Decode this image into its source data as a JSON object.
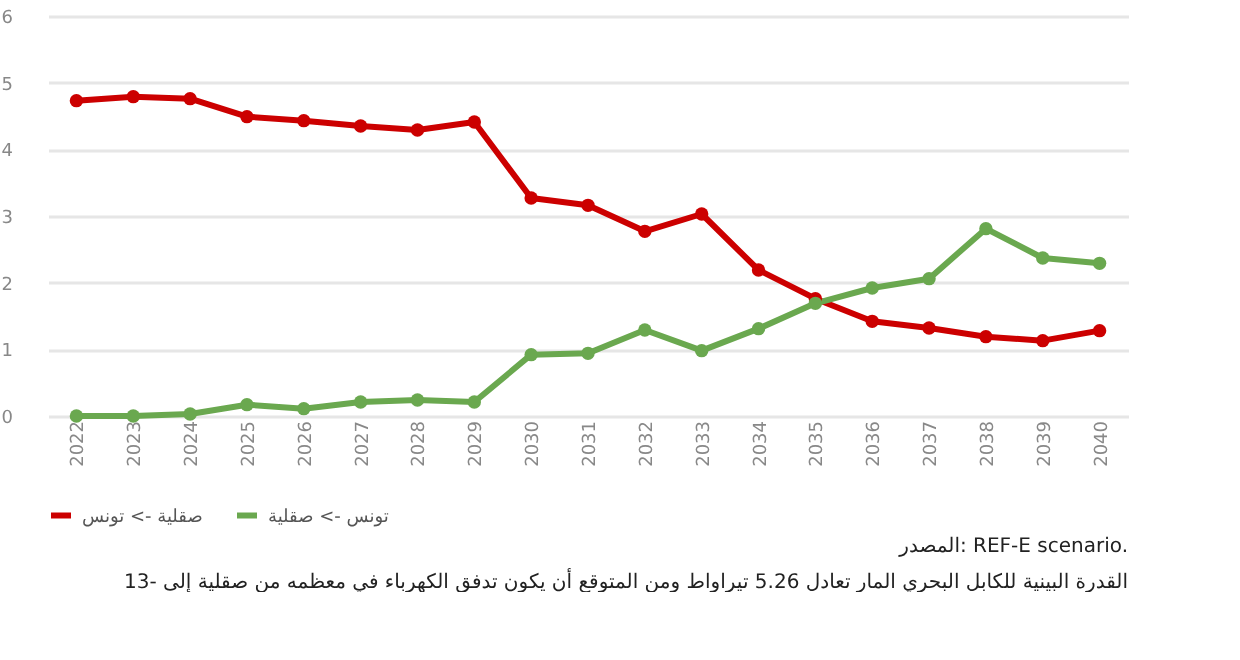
{
  "chart_data": {
    "type": "line",
    "categories": [
      "2022",
      "2023",
      "2024",
      "2025",
      "2026",
      "2027",
      "2028",
      "2029",
      "2030",
      "2031",
      "2032",
      "2033",
      "2034",
      "2035",
      "2036",
      "2037",
      "2038",
      "2039",
      "2040"
    ],
    "series": [
      {
        "name": "صقلية -> تونس",
        "color": "#cc0000",
        "values": [
          4.73,
          4.79,
          4.76,
          4.49,
          4.43,
          4.35,
          4.29,
          4.41,
          3.27,
          3.16,
          2.77,
          3.03,
          2.19,
          1.76,
          1.42,
          1.32,
          1.19,
          1.13,
          1.28
        ]
      },
      {
        "name": "تونس -> صقلية",
        "color": "#6aa84f",
        "values": [
          0,
          0,
          0.03,
          0.17,
          0.11,
          0.21,
          0.24,
          0.21,
          0.92,
          0.94,
          1.29,
          0.98,
          1.31,
          1.69,
          1.92,
          2.06,
          2.81,
          2.37,
          2.29
        ]
      }
    ],
    "ylim": [
      0,
      6
    ],
    "yticks": [
      0,
      1,
      2,
      3,
      4,
      5,
      6
    ],
    "grid": "y",
    "legend": "bottom",
    "marker": "circle",
    "line_style": "solid",
    "annotations": [
      "المصدر: REF-E scenario.",
      "13- القدرة البينية للكابل البحري المار تعادل 5.26 تيراواط ومن المتوقع أن يكون تدفق الكهرباء في معظمه من صقلية إلى"
    ]
  }
}
